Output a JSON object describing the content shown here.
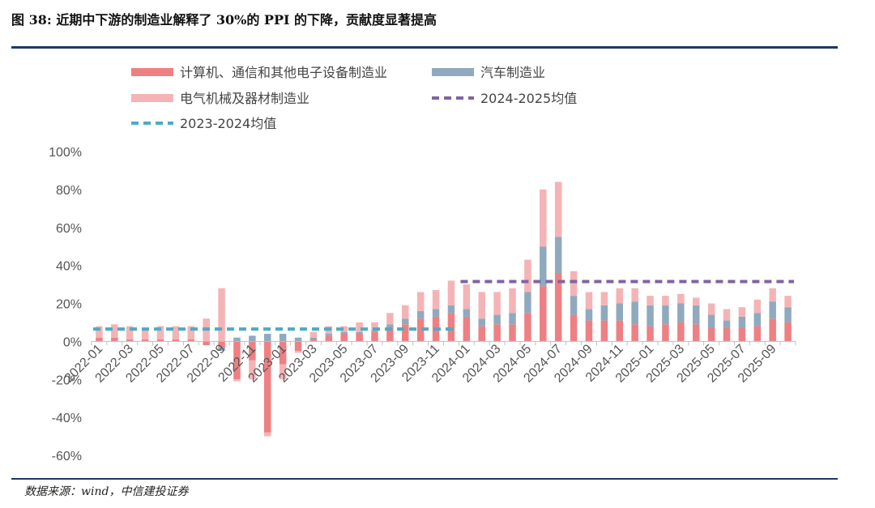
{
  "title": "图 38:  近期中下游的制造业解释了 30%的 PPI 的下降，贡献度显著提高",
  "source": "数据来源：wind，中信建投证券",
  "chart_data": {
    "type": "bar",
    "stacked": true,
    "ylim": [
      -60,
      100
    ],
    "yticks": [
      "100%",
      "80%",
      "60%",
      "40%",
      "20%",
      "0%",
      "-20%",
      "-40%",
      "-60%"
    ],
    "ytick_values": [
      100,
      80,
      60,
      40,
      20,
      0,
      -20,
      -40,
      -60
    ],
    "categories": [
      "2022-01",
      "2022-02",
      "2022-03",
      "2022-04",
      "2022-05",
      "2022-06",
      "2022-07",
      "2022-08",
      "2022-09",
      "2022-10",
      "2022-11",
      "2022-12",
      "2023-01",
      "2023-02",
      "2023-03",
      "2023-04",
      "2023-05",
      "2023-06",
      "2023-07",
      "2023-08",
      "2023-09",
      "2023-10",
      "2023-11",
      "2023-12",
      "2024-01",
      "2024-02",
      "2024-03",
      "2024-04",
      "2024-05",
      "2024-06",
      "2024-07",
      "2024-08",
      "2024-09",
      "2024-10",
      "2024-11",
      "2024-12",
      "2025-01",
      "2025-02",
      "2025-03",
      "2025-04",
      "2025-05",
      "2025-06",
      "2025-07",
      "2025-08",
      "2025-09",
      "2025-10"
    ],
    "xtick_labels": [
      "2022-01",
      "2022-03",
      "2022-05",
      "2022-07",
      "2022-09",
      "2022-11",
      "2023-01",
      "2023-03",
      "2023-05",
      "2023-07",
      "2023-09",
      "2023-11",
      "2024-01",
      "2024-03",
      "2024-05",
      "2024-07",
      "2024-09",
      "2024-11",
      "2025-01",
      "2025-03",
      "2025-05",
      "2025-07",
      "2025-09"
    ],
    "series": [
      {
        "name": "计算机、通信和其他电子设备制造业",
        "color": "#ee8083",
        "values": [
          2,
          2,
          1,
          1,
          1,
          1,
          1,
          -2,
          -3,
          -20,
          -10,
          -48,
          -12,
          -5,
          1,
          3,
          4,
          4,
          5,
          7,
          9,
          12,
          13,
          15,
          13,
          8,
          9,
          9,
          15,
          29,
          36,
          14,
          11,
          11,
          11,
          9,
          8,
          9,
          10,
          9,
          7,
          7,
          7,
          8,
          12,
          10
        ]
      },
      {
        "name": "汽车制造业",
        "color": "#8faabf",
        "values": [
          0,
          0,
          0,
          0,
          0,
          0,
          0,
          0,
          -2,
          2,
          3,
          4,
          4,
          2,
          1,
          1,
          1,
          1,
          1,
          2,
          3,
          4,
          4,
          4,
          4,
          4,
          5,
          6,
          11,
          21,
          19,
          10,
          6,
          8,
          9,
          12,
          11,
          10,
          10,
          10,
          7,
          4,
          6,
          7,
          9,
          8
        ]
      },
      {
        "name": "电气机械及器材制造业",
        "color": "#f4b4b6",
        "values": [
          6,
          7,
          7,
          6,
          7,
          7,
          7,
          12,
          28,
          -1,
          -10,
          -2,
          -8,
          -1,
          3,
          4,
          3,
          5,
          4,
          6,
          7,
          10,
          10,
          13,
          13,
          14,
          12,
          13,
          17,
          30,
          29,
          13,
          9,
          7,
          8,
          7,
          5,
          5,
          5,
          4,
          6,
          6,
          5,
          7,
          7,
          6
        ]
      }
    ],
    "reference_lines": [
      {
        "name": "2024-2025均值",
        "color": "#8064a2",
        "value": 31.5,
        "from": "2024-01",
        "to": "2025-10"
      },
      {
        "name": "2023-2024均值",
        "color": "#4bacc6",
        "value": 6.5,
        "from": "2022-01",
        "to": "2023-12"
      }
    ],
    "legend_placement": "top"
  }
}
